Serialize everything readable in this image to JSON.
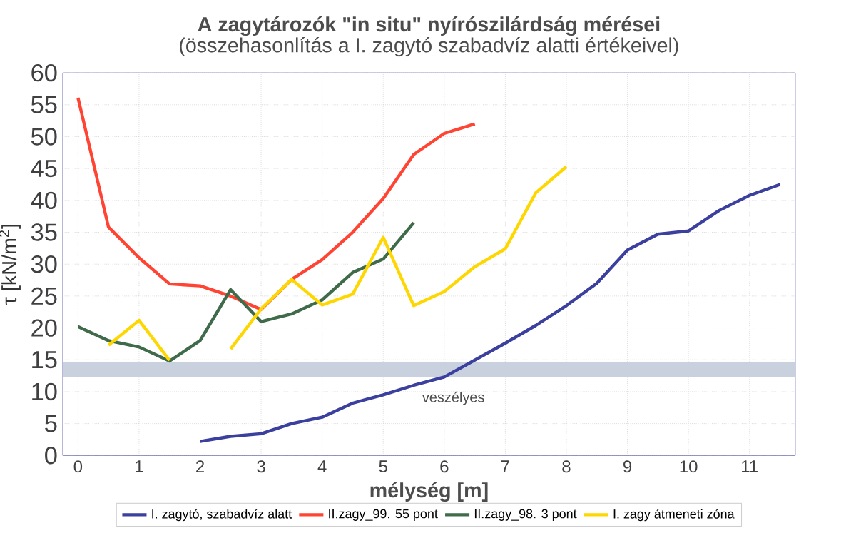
{
  "chart_data": {
    "type": "line",
    "title": "A zagytározók \"in situ\" nyírószilárdság mérései",
    "subtitle": "(összehasonlítás a I. zagytó szabadvíz alatti értékeivel)",
    "xlabel": "mélység [m]",
    "ylabel": "τ [kN/m$^{2}$]",
    "xlim": [
      -0.25,
      11.75
    ],
    "ylim": [
      0,
      60
    ],
    "xticks": [
      0,
      1,
      2,
      3,
      4,
      5,
      6,
      7,
      8,
      9,
      10,
      11
    ],
    "yticks": [
      0,
      5,
      10,
      15,
      20,
      25,
      30,
      35,
      40,
      45,
      50,
      55,
      60
    ],
    "grid": true,
    "legend": "bottom",
    "marker": "none",
    "bands": [
      {
        "axis": "y",
        "from": 12.3,
        "to": 14.6,
        "label": "veszélyes",
        "color": "#c9d1df"
      }
    ],
    "series": [
      {
        "name": "I. zagytó, szabadvíz alatt",
        "color": "#3b3f9e",
        "x": [
          2,
          2.5,
          3,
          3.5,
          4,
          4.5,
          5,
          5.5,
          6,
          7,
          7.5,
          8,
          8.5,
          9,
          9.5,
          10,
          10.5,
          11,
          11.5
        ],
        "values": [
          2.2,
          3,
          3.4,
          5,
          6,
          8.2,
          9.5,
          11,
          12.3,
          17.6,
          20.4,
          23.5,
          27,
          32.2,
          34.7,
          35.2,
          38.4,
          40.8,
          42.5
        ]
      },
      {
        "name": "II.zagy_99. 55 pont",
        "color": "#ff4433",
        "x": [
          0,
          0.5,
          1,
          1.5,
          2,
          2.5,
          3,
          3.5,
          4,
          4.5,
          5,
          5.5,
          6,
          6.5
        ],
        "values": [
          56.1,
          35.8,
          31,
          26.9,
          26.6,
          25,
          22.9,
          27.6,
          30.7,
          35,
          40.3,
          47.2,
          50.5,
          52
        ]
      },
      {
        "name": "II.zagy_98.  3 pont",
        "color": "#3f6b4a",
        "x": [
          0,
          0.5,
          1,
          1.5,
          2,
          2.5,
          3,
          3.5,
          4,
          4.5,
          5,
          5.5
        ],
        "values": [
          20.2,
          18,
          17,
          14.8,
          18,
          26,
          21,
          22.2,
          24.4,
          28.7,
          30.8,
          36.5
        ]
      },
      {
        "name": "I. zagy átmeneti zóna",
        "color": "#ffd700",
        "x": [
          0.5,
          1,
          1.5,
          2,
          2.5,
          3,
          3.5,
          4,
          4.5,
          5,
          5.5,
          6,
          6.5,
          7,
          7.5,
          8
        ],
        "values": [
          17.3,
          21.2,
          14.9,
          null,
          16.7,
          23,
          27.6,
          23.6,
          25.3,
          34.2,
          23.5,
          25.7,
          29.6,
          32.4,
          41.2,
          45.3
        ]
      }
    ]
  }
}
